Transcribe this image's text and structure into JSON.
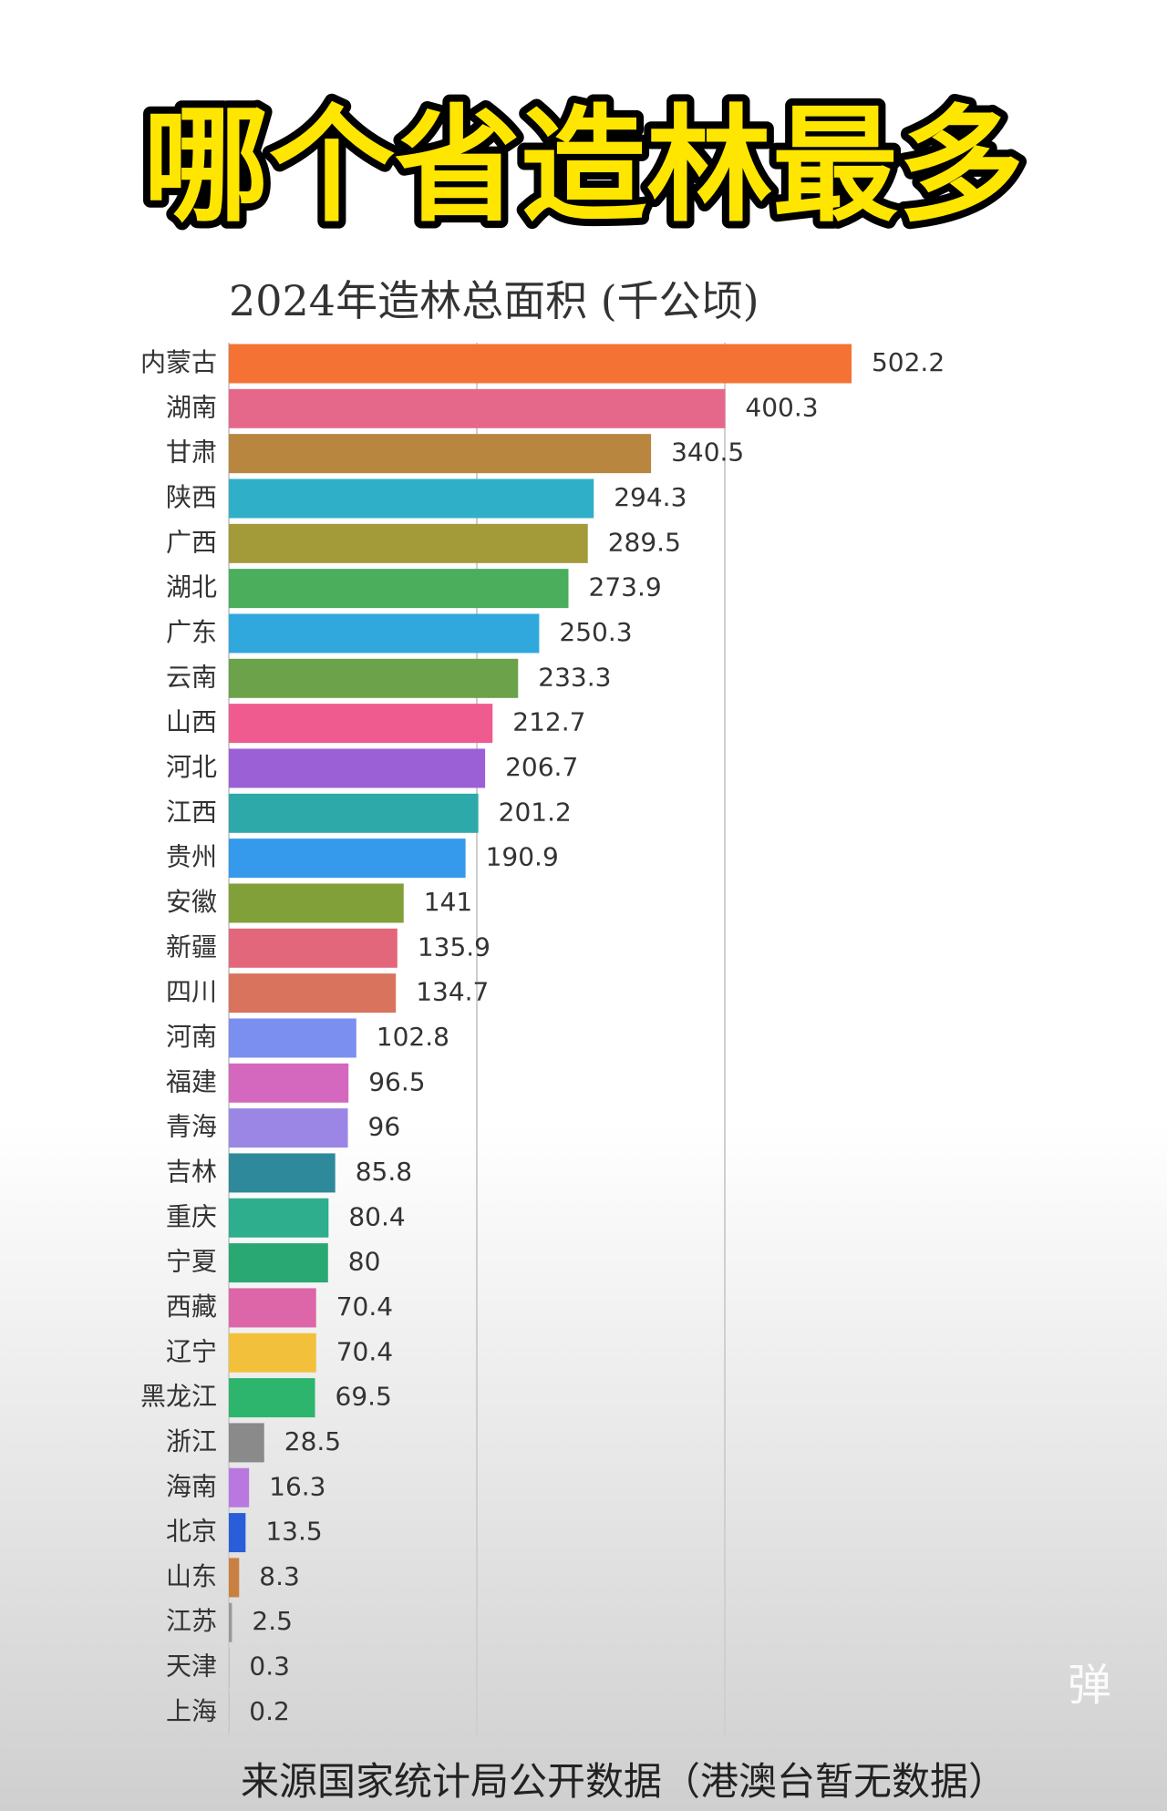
{
  "chart_data": {
    "type": "barh",
    "title": "哪个省造林最多",
    "subtitle": "2024年造林总面积 (千公顷)",
    "footer": "来源国家统计局公开数据（港澳台暂无数据）",
    "watermark": "弹",
    "categories": [
      "内蒙古",
      "湖南",
      "甘肃",
      "陕西",
      "广西",
      "湖北",
      "广东",
      "云南",
      "山西",
      "河北",
      "江西",
      "贵州",
      "安徽",
      "新疆",
      "四川",
      "河南",
      "福建",
      "青海",
      "吉林",
      "重庆",
      "宁夏",
      "西藏",
      "辽宁",
      "黑龙江",
      "浙江",
      "海南",
      "北京",
      "山东",
      "江苏",
      "天津",
      "上海"
    ],
    "values": [
      502.2,
      400.3,
      340.5,
      294.3,
      289.5,
      273.9,
      250.3,
      233.3,
      212.7,
      206.7,
      201.2,
      190.9,
      141,
      135.9,
      134.7,
      102.8,
      96.5,
      96,
      85.8,
      80.4,
      80,
      70.4,
      70.4,
      69.5,
      28.5,
      16.3,
      13.5,
      8.3,
      2.5,
      0.3,
      0.2
    ],
    "colors": [
      "#f47234",
      "#e5688a",
      "#b8863f",
      "#2fb0c8",
      "#a39a3a",
      "#4aae5c",
      "#30a8de",
      "#6ca24a",
      "#ef5b8e",
      "#9b5fd6",
      "#2ea9a9",
      "#3599ec",
      "#82a03a",
      "#e3677a",
      "#d9735e",
      "#7b8ff0",
      "#d468be",
      "#9b86e6",
      "#2e8a9a",
      "#2fae8e",
      "#2aa873",
      "#dd66a8",
      "#f2c03a",
      "#2db56e",
      "#8a8a8a",
      "#b878e0",
      "#2a5ed8",
      "#c98040",
      "#999999",
      "#aaaaaa",
      "#aaaaaa"
    ],
    "xlim": [
      0,
      750
    ],
    "xticks": [
      0,
      200,
      400
    ],
    "grid": true
  }
}
